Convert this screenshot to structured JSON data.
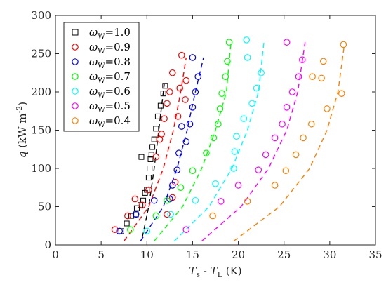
{
  "chart_data": {
    "type": "scatter",
    "title": "",
    "xlabel": {
      "a": "T",
      "a_sub": "s",
      "op": " - ",
      "b": "T",
      "b_sub": "L",
      "unit": " (K)"
    },
    "ylabel": {
      "var": "q",
      "unit": " (kW m",
      "exp": "-2",
      "close": ")"
    },
    "xlim": [
      0,
      35
    ],
    "ylim": [
      0,
      300
    ],
    "xticks": [
      0,
      5,
      10,
      15,
      20,
      25,
      30,
      35
    ],
    "yticks": [
      0,
      50,
      100,
      150,
      200,
      250,
      300
    ],
    "xtick_labels": [
      "0",
      "5",
      "10",
      "15",
      "20",
      "25",
      "30",
      "35"
    ],
    "ytick_labels": [
      "0",
      "50",
      "100",
      "150",
      "200",
      "250",
      "300"
    ],
    "grid": false,
    "legend_position": "top-left",
    "series": [
      {
        "name": "ωw=1.0",
        "label_sym": "ω",
        "label_sub": "W",
        "label_val": "=1.0",
        "color": "#000000",
        "marker": "square",
        "points": [
          [
            7.2,
            18
          ],
          [
            7.8,
            28
          ],
          [
            8.3,
            38
          ],
          [
            8.9,
            48
          ],
          [
            9.3,
            52
          ],
          [
            9.6,
            58
          ],
          [
            9.8,
            68
          ],
          [
            10.0,
            72
          ],
          [
            10.2,
            88
          ],
          [
            10.4,
            112
          ],
          [
            10.5,
            118
          ],
          [
            10.6,
            128
          ],
          [
            10.8,
            138
          ],
          [
            11.0,
            152
          ],
          [
            11.2,
            168
          ],
          [
            11.5,
            182
          ],
          [
            11.8,
            198
          ],
          [
            12.0,
            208
          ],
          [
            9.4,
            115
          ],
          [
            10.3,
            100
          ],
          [
            8.8,
            40
          ]
        ],
        "fit": [
          [
            9.5,
            10
          ],
          [
            10.2,
            50
          ],
          [
            10.8,
            100
          ],
          [
            11.3,
            150
          ],
          [
            11.9,
            210
          ]
        ]
      },
      {
        "name": "ωw=0.9",
        "label_sym": "ω",
        "label_sub": "W",
        "label_val": "=0.9",
        "color": "#ff0000",
        "marker": "circle",
        "points": [
          [
            6.5,
            20
          ],
          [
            7.9,
            38
          ],
          [
            8.7,
            60
          ],
          [
            9.5,
            52
          ],
          [
            10.2,
            72
          ],
          [
            11.0,
            115
          ],
          [
            11.6,
            145
          ],
          [
            11.4,
            138
          ],
          [
            11.9,
            165
          ],
          [
            12.2,
            185
          ],
          [
            12.5,
            200
          ],
          [
            12.8,
            225
          ],
          [
            13.4,
            168
          ],
          [
            13.6,
            205
          ],
          [
            13.8,
            248
          ],
          [
            14.2,
            190
          ],
          [
            14.3,
            215
          ],
          [
            13.1,
            82
          ],
          [
            12.8,
            62
          ],
          [
            12.2,
            40
          ]
        ],
        "fit": [
          [
            7.5,
            5
          ],
          [
            10.2,
            50
          ],
          [
            11.8,
            100
          ],
          [
            12.9,
            150
          ],
          [
            13.7,
            200
          ],
          [
            14.3,
            245
          ]
        ]
      },
      {
        "name": "ωw=0.8",
        "label_sym": "ω",
        "label_sub": "W",
        "label_val": "=0.8",
        "color": "#0000ff",
        "marker": "circle",
        "points": [
          [
            7.0,
            18
          ],
          [
            8.8,
            40
          ],
          [
            10.8,
            58
          ],
          [
            12.5,
            60
          ],
          [
            12.8,
            78
          ],
          [
            13.3,
            98
          ],
          [
            13.5,
            120
          ],
          [
            13.8,
            155
          ],
          [
            14.3,
            135
          ],
          [
            14.7,
            158
          ],
          [
            15.0,
            180
          ],
          [
            15.3,
            200
          ],
          [
            15.6,
            220
          ],
          [
            15.0,
            245
          ]
        ],
        "fit": [
          [
            9.3,
            5
          ],
          [
            11.8,
            50
          ],
          [
            13.3,
            100
          ],
          [
            14.4,
            150
          ],
          [
            15.3,
            200
          ],
          [
            16.2,
            245
          ]
        ]
      },
      {
        "name": "ωw=0.7",
        "label_sym": "ω",
        "label_sub": "W",
        "label_val": "=0.7",
        "color": "#00ff00",
        "marker": "circle",
        "points": [
          [
            8.2,
            20
          ],
          [
            11.0,
            38
          ],
          [
            12.2,
            58
          ],
          [
            13.7,
            75
          ],
          [
            15.0,
            97
          ],
          [
            16.5,
            120
          ],
          [
            17.3,
            140
          ],
          [
            17.8,
            158
          ],
          [
            18.0,
            178
          ],
          [
            18.2,
            198
          ],
          [
            18.6,
            220
          ],
          [
            18.8,
            240
          ],
          [
            19.0,
            265
          ]
        ],
        "fit": [
          [
            10.8,
            5
          ],
          [
            13.9,
            50
          ],
          [
            16.0,
            100
          ],
          [
            17.5,
            150
          ],
          [
            18.7,
            200
          ],
          [
            19.2,
            265
          ]
        ]
      },
      {
        "name": "ωw=0.6",
        "label_sym": "ω",
        "label_sub": "W",
        "label_val": "=0.6",
        "color": "#00ffff",
        "marker": "circle",
        "points": [
          [
            10.0,
            18
          ],
          [
            12.6,
            40
          ],
          [
            15.3,
            58
          ],
          [
            17.5,
            80
          ],
          [
            19.5,
            100
          ],
          [
            19.6,
            122
          ],
          [
            19.8,
            142
          ],
          [
            20.6,
            165
          ],
          [
            21.5,
            185
          ],
          [
            22.0,
            205
          ],
          [
            22.5,
            225
          ],
          [
            21.0,
            245
          ],
          [
            20.9,
            268
          ]
        ],
        "fit": [
          [
            13.0,
            5
          ],
          [
            16.8,
            50
          ],
          [
            19.3,
            100
          ],
          [
            21.0,
            150
          ],
          [
            22.2,
            200
          ],
          [
            22.8,
            265
          ]
        ]
      },
      {
        "name": "ωw=0.5",
        "label_sym": "ω",
        "label_sub": "W",
        "label_val": "=0.5",
        "color": "#ff00ff",
        "marker": "circle",
        "points": [
          [
            14.3,
            20
          ],
          [
            18.1,
            57
          ],
          [
            20.0,
            78
          ],
          [
            22.2,
            98
          ],
          [
            23.0,
            118
          ],
          [
            24.0,
            140
          ],
          [
            24.8,
            158
          ],
          [
            25.3,
            180
          ],
          [
            25.9,
            200
          ],
          [
            26.6,
            220
          ],
          [
            27.0,
            242
          ],
          [
            25.3,
            265
          ]
        ],
        "fit": [
          [
            16.0,
            5
          ],
          [
            20.3,
            50
          ],
          [
            23.3,
            100
          ],
          [
            25.3,
            150
          ],
          [
            26.5,
            200
          ],
          [
            27.3,
            265
          ]
        ]
      },
      {
        "name": "ωw=0.4",
        "label_sym": "ω",
        "label_sub": "W",
        "label_val": "=0.4",
        "color": "#ff8000",
        "marker": "circle",
        "points": [
          [
            17.2,
            38
          ],
          [
            21.0,
            57
          ],
          [
            24.0,
            78
          ],
          [
            25.2,
            97
          ],
          [
            26.3,
            118
          ],
          [
            27.1,
            140
          ],
          [
            28.0,
            158
          ],
          [
            29.7,
            178
          ],
          [
            28.1,
            220
          ],
          [
            29.1,
            218
          ],
          [
            29.3,
            240
          ],
          [
            31.3,
            198
          ],
          [
            31.5,
            262
          ]
        ],
        "fit": [
          [
            19.5,
            5
          ],
          [
            24.5,
            50
          ],
          [
            27.8,
            100
          ],
          [
            29.7,
            150
          ],
          [
            30.9,
            200
          ],
          [
            31.6,
            262
          ]
        ]
      }
    ]
  }
}
